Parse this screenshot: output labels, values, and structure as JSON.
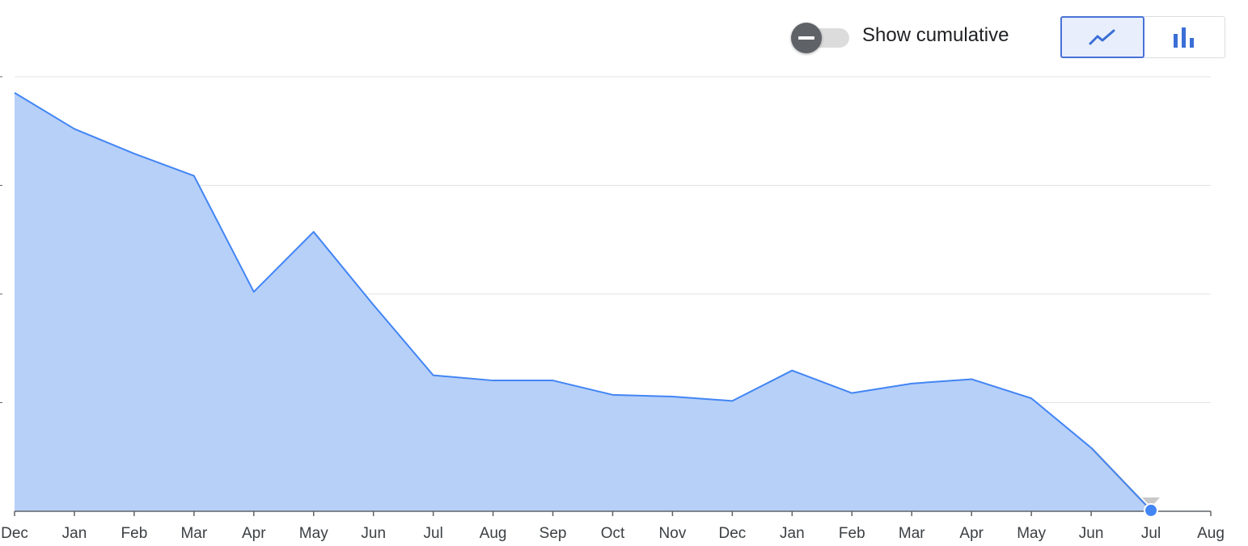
{
  "controls": {
    "cumulative_label": "Show cumulative",
    "cumulative_on": false,
    "view_mode": "line",
    "view_options": [
      "line-chart-icon",
      "bar-chart-icon"
    ]
  },
  "colors": {
    "line": "#4285f4",
    "fill": "#b7d0f8",
    "grid": "#e3e3e3",
    "axis": "#5f6368",
    "projection": "#c8c8c8"
  },
  "chart_data": {
    "type": "area",
    "title": "",
    "xlabel": "",
    "ylabel": "",
    "y_tick_labels_visible": false,
    "ylim": [
      0,
      100
    ],
    "y_gridlines": [
      0,
      25,
      50,
      75,
      100
    ],
    "grid": true,
    "x_tick_labels": [
      "Dec",
      "Jan",
      "Feb",
      "Mar",
      "Apr",
      "May",
      "Jun",
      "Jul",
      "Aug",
      "Sep",
      "Oct",
      "Nov",
      "Dec",
      "Jan",
      "Feb",
      "Mar",
      "Apr",
      "May",
      "Jun",
      "Jul",
      "Aug"
    ],
    "series": [
      {
        "values": [
          96.3,
          88.0,
          82.3,
          77.2,
          50.5,
          64.3,
          47.5,
          31.3,
          30.1,
          30.1,
          26.8,
          26.4,
          25.4,
          32.4,
          27.2,
          29.4,
          30.4,
          26.0,
          14.6,
          0.2
        ]
      }
    ],
    "projection_from_index": 18,
    "highlighted_index": 19
  }
}
